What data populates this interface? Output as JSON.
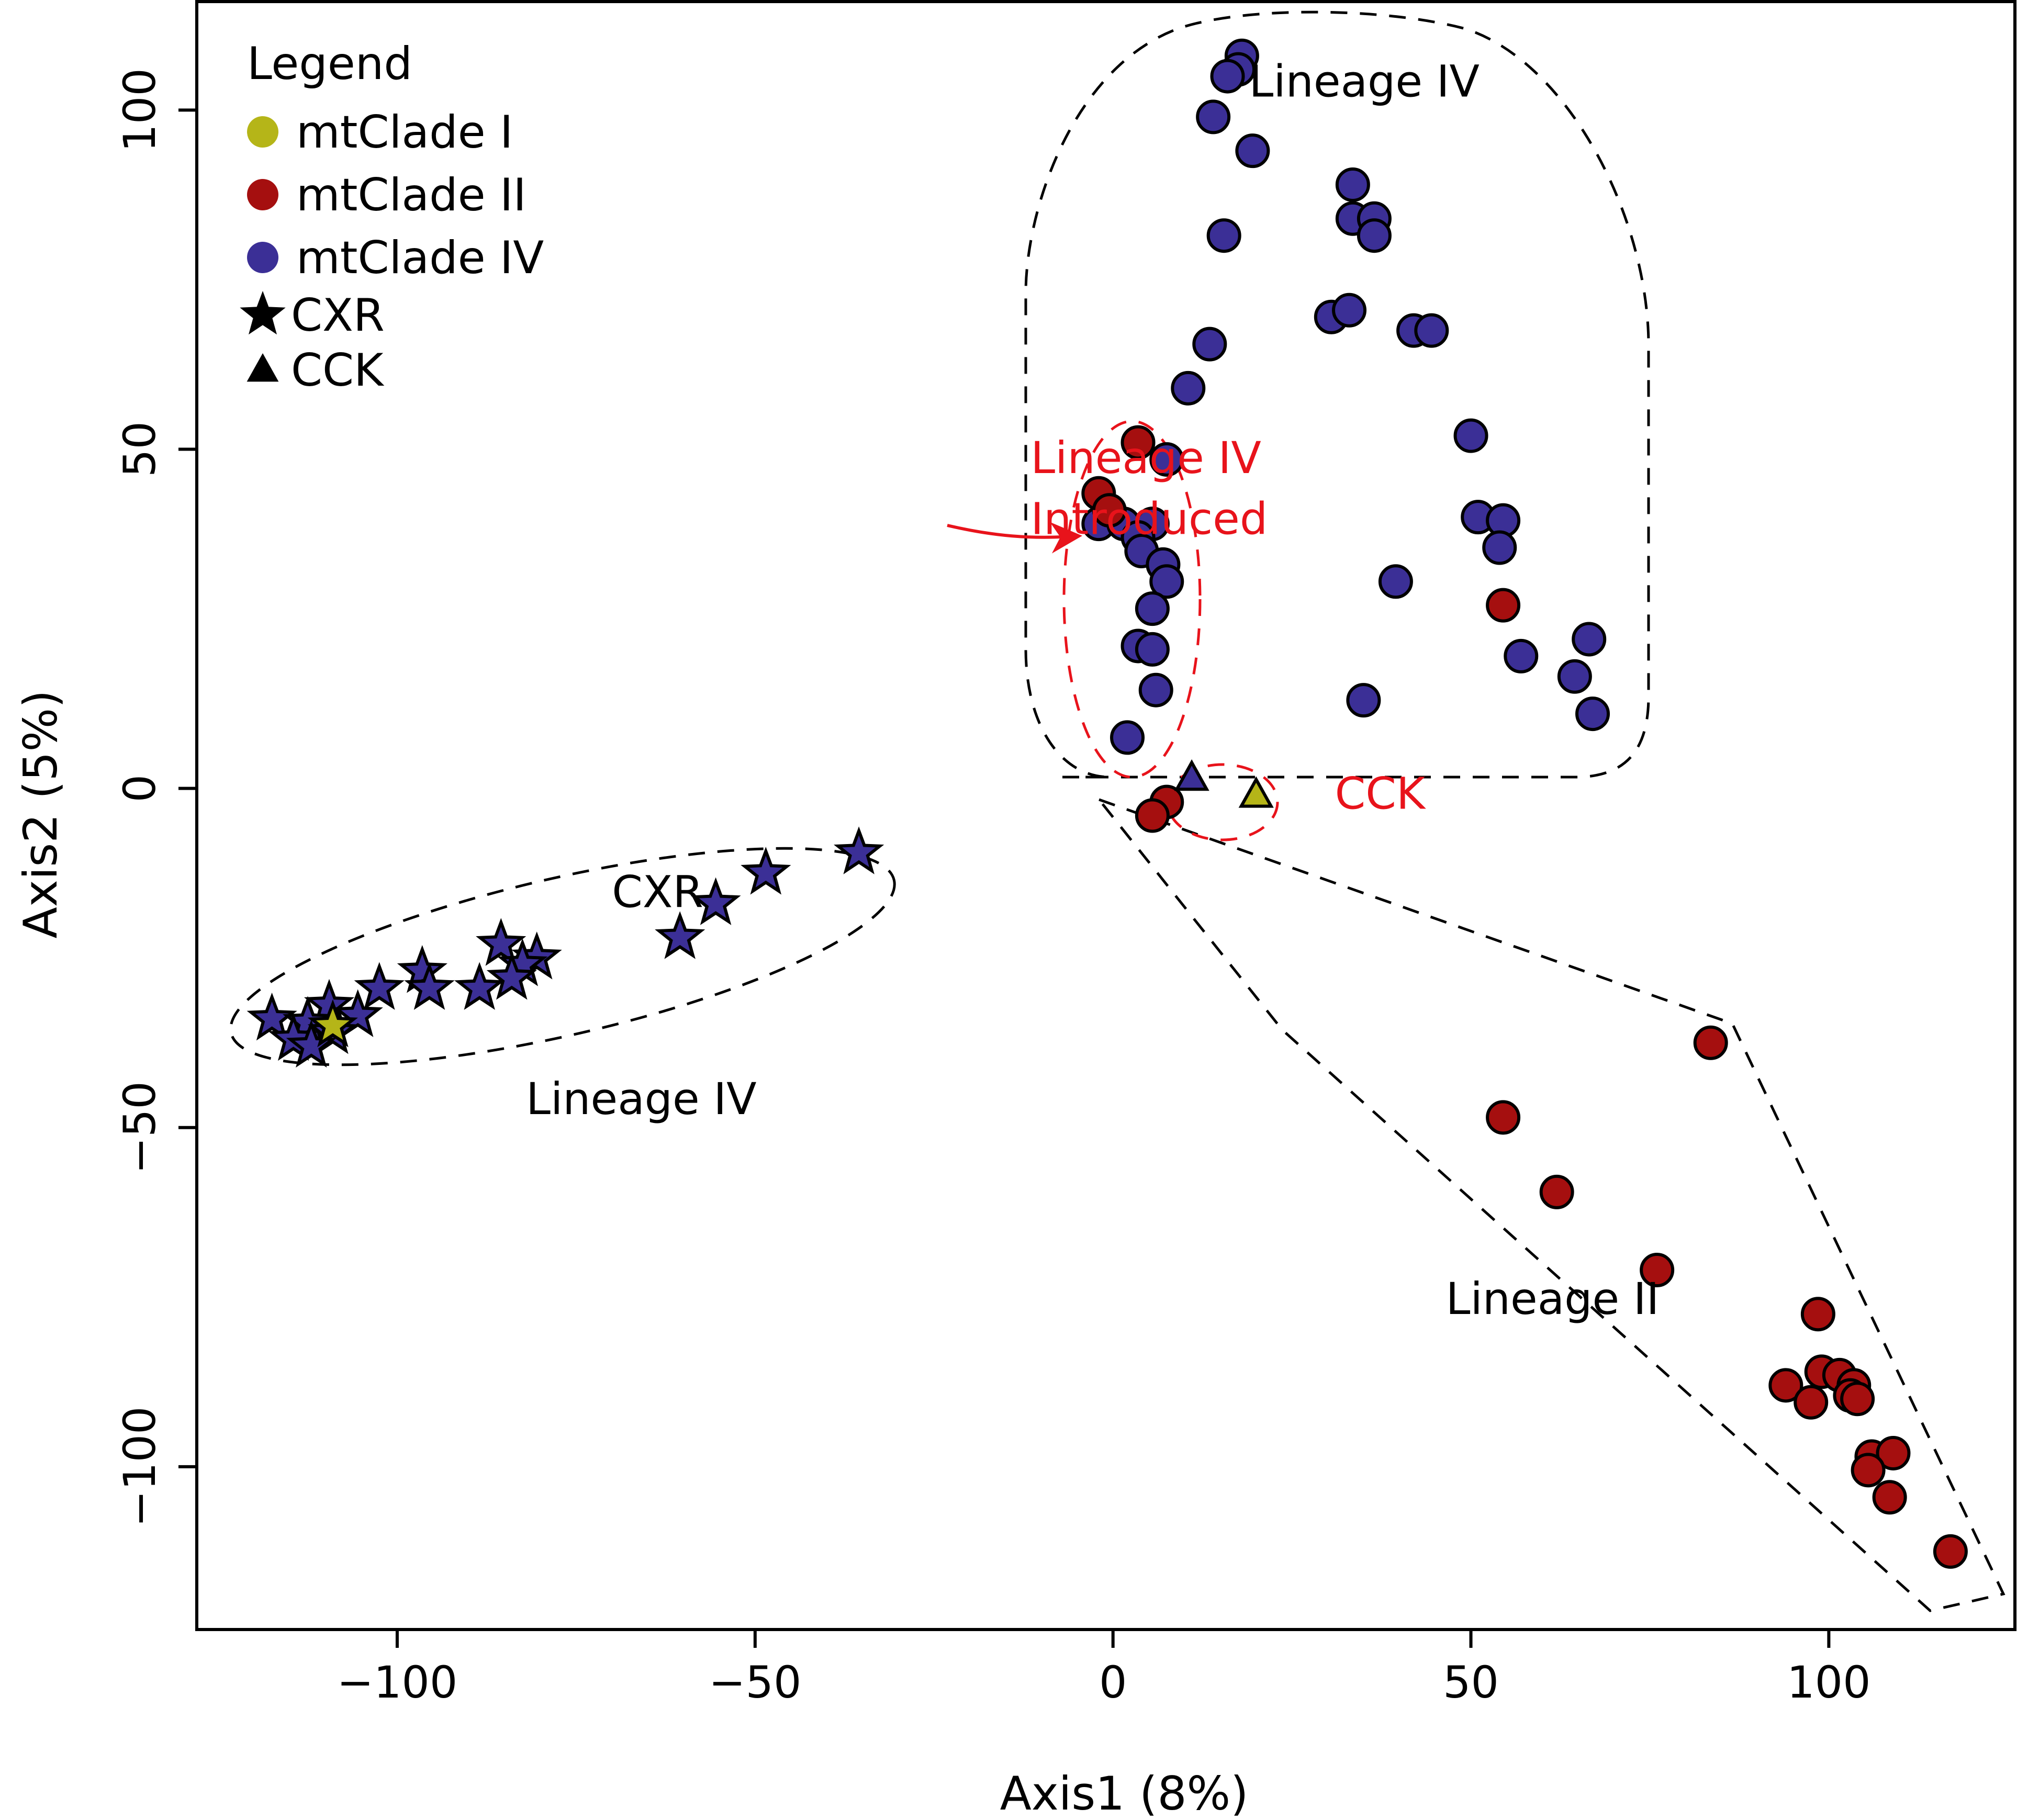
{
  "chart_data": {
    "type": "scatter",
    "title": "",
    "xlabel": "Axis1 (8%)",
    "ylabel": "Axis2 (5%)",
    "xlim": [
      -128,
      126
    ],
    "ylim": [
      -124,
      116
    ],
    "xticks": [
      -100,
      -50,
      0,
      50,
      100
    ],
    "yticks": [
      -100,
      -50,
      0,
      50,
      100
    ],
    "xtick_labels": [
      "−100",
      "−50",
      "0",
      "50",
      "100"
    ],
    "ytick_labels": [
      "−100",
      "−50",
      "0",
      "50",
      "100"
    ],
    "grid": false,
    "colors": {
      "mtClade I": "#b5b518",
      "mtClade II": "#a50f0f",
      "mtClade IV": "#3b2f96",
      "annotation_red": "#e8131b",
      "annotation_black": "#000000"
    },
    "legend": {
      "title": "Legend",
      "position": "top-left",
      "entries": [
        {
          "label": "mtClade I",
          "marker": "circle",
          "color": "#b5b518"
        },
        {
          "label": "mtClade II",
          "marker": "circle",
          "color": "#a50f0f"
        },
        {
          "label": "mtClade IV",
          "marker": "circle",
          "color": "#3b2f96"
        },
        {
          "label": "CXR",
          "marker": "star",
          "color": "#000000"
        },
        {
          "label": "CCK",
          "marker": "triangle",
          "color": "#000000"
        }
      ]
    },
    "series": [
      {
        "name": "mtClade IV (circles)",
        "marker": "circle",
        "color": "#3b2f96",
        "points": [
          [
            18,
            108
          ],
          [
            17.5,
            106
          ],
          [
            16,
            105
          ],
          [
            14,
            99
          ],
          [
            19.5,
            94
          ],
          [
            15.5,
            81.5
          ],
          [
            33.5,
            89
          ],
          [
            33.5,
            84
          ],
          [
            36.5,
            84
          ],
          [
            36.5,
            81.5
          ],
          [
            30.5,
            69.5
          ],
          [
            33,
            70.5
          ],
          [
            42,
            67.5
          ],
          [
            44.5,
            67.5
          ],
          [
            13.5,
            65.5
          ],
          [
            10.5,
            59
          ],
          [
            50,
            52
          ],
          [
            51,
            40
          ],
          [
            54.5,
            39.5
          ],
          [
            54,
            35.5
          ],
          [
            39.5,
            30.5
          ],
          [
            57,
            19.5
          ],
          [
            66.5,
            22
          ],
          [
            64.5,
            16.5
          ],
          [
            67,
            11
          ],
          [
            35,
            13
          ],
          [
            7.5,
            48.5
          ],
          [
            -2,
            39
          ],
          [
            1.5,
            39
          ],
          [
            5.5,
            39
          ],
          [
            3.5,
            37
          ],
          [
            4,
            35
          ],
          [
            7,
            33
          ],
          [
            7.5,
            30.5
          ],
          [
            5.5,
            26.5
          ],
          [
            3.5,
            21
          ],
          [
            5.5,
            20.5
          ],
          [
            6,
            14.5
          ],
          [
            2,
            7.5
          ]
        ]
      },
      {
        "name": "mtClade II (circles)",
        "marker": "circle",
        "color": "#a50f0f",
        "points": [
          [
            3.5,
            51
          ],
          [
            -2,
            43.5
          ],
          [
            -0.5,
            41
          ],
          [
            54.5,
            27
          ],
          [
            7.5,
            -2
          ],
          [
            5.5,
            -4
          ],
          [
            83.5,
            -37.5
          ],
          [
            54.5,
            -48.5
          ],
          [
            62,
            -59.5
          ],
          [
            76,
            -71
          ],
          [
            98.5,
            -77.5
          ],
          [
            99,
            -86
          ],
          [
            101.5,
            -86.5
          ],
          [
            94,
            -88
          ],
          [
            97.5,
            -90.5
          ],
          [
            103.5,
            -88
          ],
          [
            103,
            -89.5
          ],
          [
            104,
            -90
          ],
          [
            106,
            -98.5
          ],
          [
            109,
            -98
          ],
          [
            105.5,
            -100.5
          ],
          [
            108.5,
            -104.5
          ],
          [
            117,
            -112.5
          ]
        ]
      },
      {
        "name": "mtClade IV (CXR, stars)",
        "marker": "star",
        "color": "#3b2f96",
        "points": [
          [
            -35.5,
            -9.5
          ],
          [
            -48.5,
            -12.5
          ],
          [
            -55.5,
            -17
          ],
          [
            -60.5,
            -22
          ],
          [
            -85.5,
            -23
          ],
          [
            -80.5,
            -25
          ],
          [
            -82.5,
            -26
          ],
          [
            -84,
            -28
          ],
          [
            -96.5,
            -27
          ],
          [
            -95.5,
            -29.5
          ],
          [
            -88.5,
            -29.5
          ],
          [
            -102.5,
            -29.5
          ],
          [
            -109.5,
            -32
          ],
          [
            -105.5,
            -33.5
          ],
          [
            -117.5,
            -34
          ],
          [
            -112.5,
            -34.5
          ],
          [
            -109,
            -36
          ],
          [
            -114.5,
            -37
          ],
          [
            -112,
            -38
          ]
        ]
      },
      {
        "name": "mtClade I (CXR, stars)",
        "marker": "star",
        "color": "#b5b518",
        "points": [
          [
            -109,
            -35
          ]
        ]
      },
      {
        "name": "mtClade IV (CCK, triangles)",
        "marker": "triangle",
        "color": "#3b2f96",
        "points": [
          [
            11,
            1.5
          ]
        ]
      },
      {
        "name": "mtClade I (CCK, triangles)",
        "marker": "triangle",
        "color": "#b5b518",
        "points": [
          [
            20,
            -1
          ]
        ]
      }
    ],
    "annotations": [
      {
        "text": "Lineage IV",
        "x": 19,
        "y": 102,
        "color": "#000000"
      },
      {
        "text": "Lineage IV",
        "x": -11.5,
        "y": 46.5,
        "color": "#e8131b"
      },
      {
        "text": "Introduced",
        "x": -11.5,
        "y": 37.5,
        "color": "#e8131b"
      },
      {
        "text": "CCK",
        "x": 31,
        "y": -3,
        "color": "#e8131b"
      },
      {
        "text": "CXR",
        "x": -70,
        "y": -17.5,
        "color": "#000000"
      },
      {
        "text": "Lineage IV",
        "x": -82,
        "y": -48,
        "color": "#000000"
      },
      {
        "text": "Lineage II",
        "x": 46.5,
        "y": -77.5,
        "color": "#000000"
      }
    ]
  }
}
